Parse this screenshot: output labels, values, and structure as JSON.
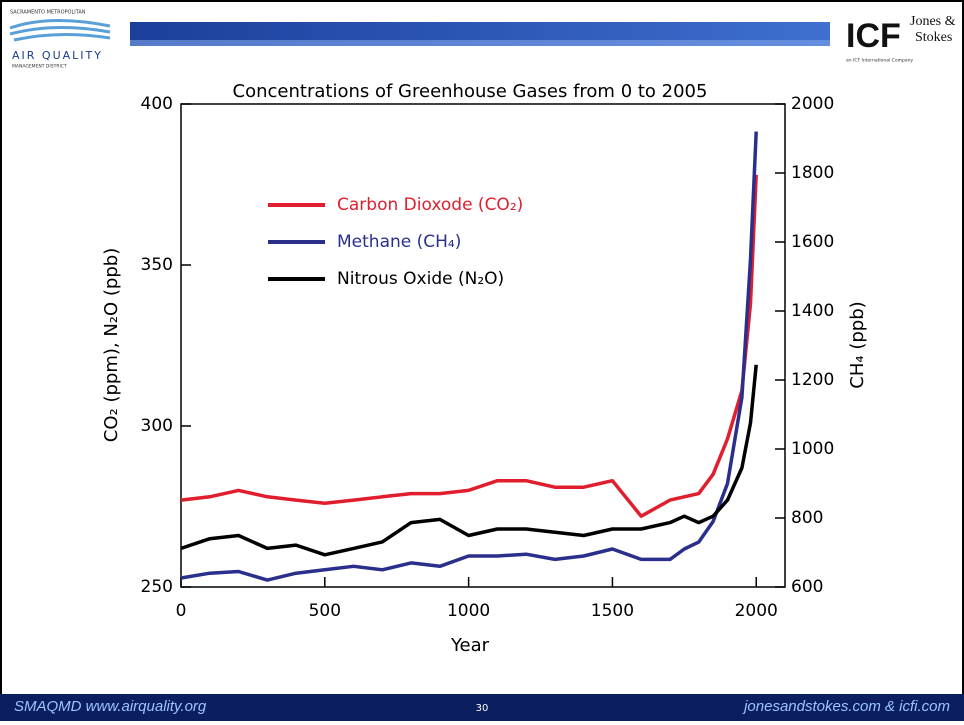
{
  "header": {
    "org_top": "SACRAMENTO METROPOLITAN",
    "org_name": "AIR QUALITY",
    "org_bottom": "MANAGEMENT DISTRICT",
    "icf": "ICF",
    "partner_1": "Jones &",
    "partner_2": "Stokes",
    "icf_sub": "an ICF International Company"
  },
  "chart_data": {
    "type": "line",
    "title": "Concentrations of Greenhouse Gases from 0 to 2005",
    "x_label": "Year",
    "y_label": "CO₂ (ppm), N₂O (ppb)",
    "y2_label": "CH₄ (ppb)",
    "x": [
      0,
      100,
      200,
      300,
      400,
      500,
      600,
      700,
      800,
      900,
      1000,
      1100,
      1200,
      1300,
      1400,
      1500,
      1600,
      1700,
      1750,
      1800,
      1850,
      1900,
      1950,
      1980,
      2000
    ],
    "series": [
      {
        "name": "Carbon Dioxode (CO₂)",
        "color": "#e01e2e",
        "values": [
          277,
          278,
          280,
          278,
          277,
          276,
          277,
          278,
          279,
          279,
          280,
          283,
          283,
          281,
          281,
          283,
          272,
          277,
          278,
          279,
          285,
          296,
          311,
          338,
          378
        ]
      },
      {
        "name": "Methane (CH₄)",
        "color": "#2b2f8c",
        "axis": "y2",
        "values": [
          626,
          640,
          645,
          620,
          640,
          650,
          660,
          650,
          670,
          660,
          690,
          690,
          695,
          680,
          690,
          710,
          680,
          680,
          710,
          730,
          790,
          900,
          1150,
          1550,
          1920
        ]
      },
      {
        "name": "Nitrous Oxide (N₂O)",
        "color": "#000000",
        "values": [
          262,
          265,
          266,
          262,
          263,
          260,
          262,
          264,
          270,
          271,
          266,
          268,
          268,
          267,
          266,
          268,
          268,
          270,
          272,
          270,
          272,
          277,
          287,
          301,
          319
        ]
      }
    ],
    "xlim": [
      0,
      2100
    ],
    "xticks": [
      0,
      500,
      1000,
      1500,
      2000
    ],
    "ylim": [
      250,
      400
    ],
    "yticks": [
      250,
      300,
      350,
      400
    ],
    "y2lim": [
      600,
      2000
    ],
    "y2ticks": [
      600,
      800,
      1000,
      1200,
      1400,
      1600,
      1800,
      2000
    ]
  },
  "footer": {
    "left": "SMAQMD www.airquality.org",
    "page": "30",
    "right": "jonesandstokes.com & icfi.com"
  }
}
